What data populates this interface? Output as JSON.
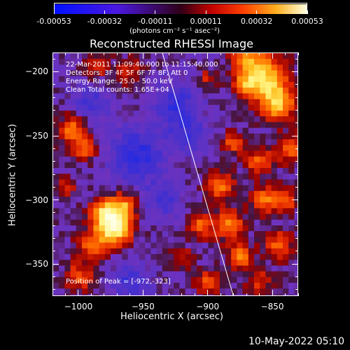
{
  "colorbar": {
    "tick_labels": [
      "-0.00053",
      "-0.00032",
      "-0.00011",
      "0.00011",
      "0.00032",
      "0.00053"
    ],
    "unit_label": "(photons cm⁻² s⁻¹ asec⁻²)",
    "range": [
      -0.00053,
      0.00053
    ]
  },
  "image": {
    "title": "Reconstructed RHESSI Image",
    "annotations": [
      "22-Mar-2011 11:09:40.000 to 11:15:40.000",
      "Detectors: 3F 4F 5F 6F 7F 8F, Att 0",
      "Energy Range: 25.0 - 50.0 keV",
      "Clean     Total counts: 1.65E+04"
    ],
    "peak_label": "Position of Peak = [-972,-323]",
    "peak": [
      -972,
      -323
    ],
    "xlabel": "Heliocentric X (arcsec)",
    "ylabel": "Heliocentric Y (arcsec)",
    "xlim": [
      -1020,
      -830
    ],
    "ylim": [
      -375,
      -185
    ],
    "x_ticks": [
      "-1000",
      "-950",
      "-900",
      "-850"
    ],
    "y_ticks": [
      "-200",
      "-250",
      "-300",
      "-350"
    ],
    "limb_line": [
      [
        -935,
        -185
      ],
      [
        -880,
        -375
      ]
    ]
  },
  "footer": {
    "date": "10-May-2022 05:10"
  },
  "colors": {
    "foreground": "#ffffff",
    "background": "#000000",
    "negative": "#2020ff",
    "positive_low": "#ff2000",
    "positive_high": "#ffffc0"
  }
}
